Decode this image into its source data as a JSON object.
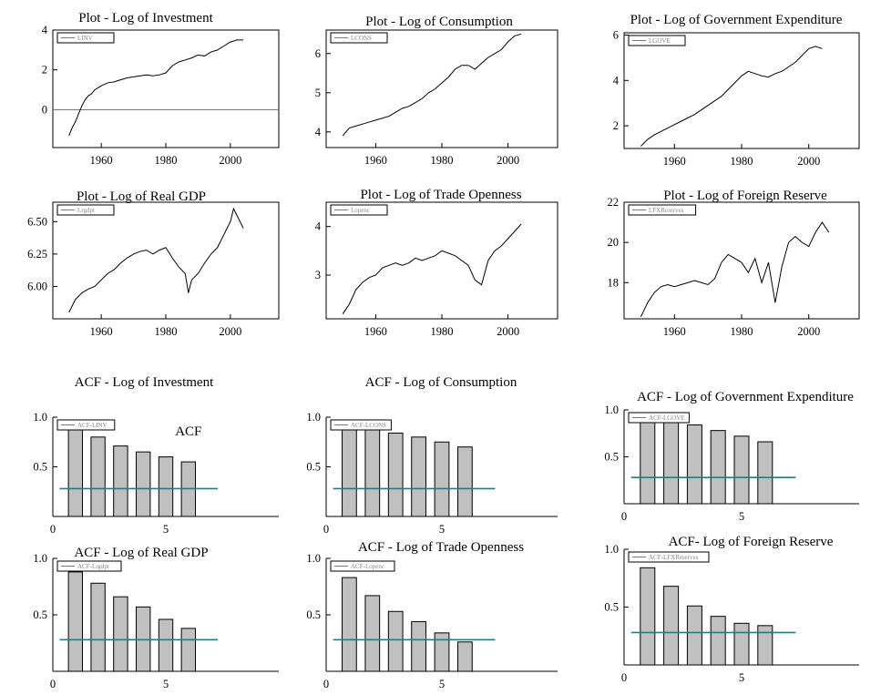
{
  "chart_data": [
    {
      "type": "line",
      "title": "Plot - Log of Investment",
      "legend": "LINV",
      "legend_position": "top-left",
      "xlim": [
        1945,
        2015
      ],
      "ylim": [
        -1.9,
        4.0
      ],
      "xticks": [
        1960,
        1980,
        2000
      ],
      "yticks": [
        0,
        2,
        4
      ],
      "ytick_labels": [
        "0",
        "2",
        "4"
      ],
      "reference_line": 0,
      "series": [
        {
          "x": [
            1950,
            1951,
            1952,
            1953,
            1954,
            1955,
            1956,
            1957,
            1958,
            1959,
            1960,
            1962,
            1964,
            1966,
            1968,
            1970,
            1972,
            1974,
            1976,
            1978,
            1980,
            1982,
            1984,
            1986,
            1988,
            1990,
            1992,
            1994,
            1996,
            1998,
            2000,
            2002,
            2004
          ],
          "y": [
            -1.3,
            -0.9,
            -0.6,
            -0.2,
            0.2,
            0.5,
            0.7,
            0.8,
            1.0,
            1.1,
            1.2,
            1.35,
            1.4,
            1.5,
            1.6,
            1.65,
            1.7,
            1.75,
            1.7,
            1.75,
            1.85,
            2.2,
            2.4,
            2.5,
            2.6,
            2.75,
            2.7,
            2.9,
            3.0,
            3.2,
            3.4,
            3.5,
            3.5
          ]
        }
      ]
    },
    {
      "type": "line",
      "title": "Plot - Log of Consumption",
      "legend": "LCONS",
      "legend_position": "top-left",
      "xlim": [
        1945,
        2015
      ],
      "ylim": [
        3.6,
        6.6
      ],
      "xticks": [
        1960,
        1980,
        2000
      ],
      "yticks": [
        4,
        5,
        6
      ],
      "ytick_labels": [
        "4",
        "5",
        "6"
      ],
      "series": [
        {
          "x": [
            1950,
            1952,
            1954,
            1956,
            1958,
            1960,
            1962,
            1964,
            1966,
            1968,
            1970,
            1972,
            1974,
            1976,
            1978,
            1980,
            1982,
            1984,
            1986,
            1988,
            1990,
            1992,
            1994,
            1996,
            1998,
            2000,
            2002,
            2004
          ],
          "y": [
            3.9,
            4.1,
            4.15,
            4.2,
            4.25,
            4.3,
            4.35,
            4.4,
            4.5,
            4.6,
            4.65,
            4.75,
            4.85,
            5.0,
            5.1,
            5.25,
            5.4,
            5.6,
            5.7,
            5.7,
            5.6,
            5.75,
            5.9,
            6.0,
            6.1,
            6.3,
            6.45,
            6.5
          ]
        }
      ]
    },
    {
      "type": "line",
      "title": "Plot - Log of Government Expenditure",
      "legend": "LGOVE",
      "legend_position": "top-left",
      "xlim": [
        1945,
        2015
      ],
      "ylim": [
        1.0,
        6.1
      ],
      "xticks": [
        1960,
        1980,
        2000
      ],
      "yticks": [
        2,
        4,
        6
      ],
      "ytick_labels": [
        "2",
        "4",
        "6"
      ],
      "series": [
        {
          "x": [
            1950,
            1952,
            1954,
            1956,
            1958,
            1960,
            1962,
            1964,
            1966,
            1968,
            1970,
            1972,
            1974,
            1976,
            1978,
            1980,
            1982,
            1984,
            1986,
            1988,
            1990,
            1992,
            1994,
            1996,
            1998,
            2000,
            2002,
            2004
          ],
          "y": [
            1.1,
            1.4,
            1.6,
            1.75,
            1.9,
            2.05,
            2.2,
            2.35,
            2.5,
            2.7,
            2.9,
            3.1,
            3.3,
            3.6,
            3.9,
            4.2,
            4.4,
            4.3,
            4.2,
            4.15,
            4.3,
            4.4,
            4.6,
            4.8,
            5.1,
            5.4,
            5.5,
            5.4
          ]
        }
      ]
    },
    {
      "type": "line",
      "title": "Plot - Log of Real GDP",
      "legend": "Lrgdpt",
      "legend_position": "top-left",
      "xlim": [
        1945,
        2015
      ],
      "ylim": [
        5.75,
        6.65
      ],
      "xticks": [
        1960,
        1980,
        2000
      ],
      "yticks": [
        6.0,
        6.25,
        6.5
      ],
      "ytick_labels": [
        "6.00",
        "6.25",
        "6.50"
      ],
      "series": [
        {
          "x": [
            1950,
            1952,
            1954,
            1956,
            1958,
            1960,
            1962,
            1964,
            1966,
            1968,
            1970,
            1972,
            1974,
            1976,
            1978,
            1980,
            1982,
            1984,
            1986,
            1987,
            1988,
            1990,
            1992,
            1994,
            1996,
            1998,
            2000,
            2001,
            2002,
            2004
          ],
          "y": [
            5.8,
            5.9,
            5.95,
            5.98,
            6.0,
            6.05,
            6.1,
            6.13,
            6.18,
            6.22,
            6.25,
            6.27,
            6.28,
            6.25,
            6.28,
            6.3,
            6.22,
            6.15,
            6.1,
            5.95,
            6.05,
            6.1,
            6.18,
            6.25,
            6.3,
            6.4,
            6.5,
            6.6,
            6.55,
            6.45
          ]
        }
      ]
    },
    {
      "type": "line",
      "title": "Plot - Log of Trade Openness",
      "legend": "Lopenc",
      "legend_position": "top-left",
      "xlim": [
        1945,
        2015
      ],
      "ylim": [
        2.1,
        4.5
      ],
      "xticks": [
        1960,
        1980,
        2000
      ],
      "yticks": [
        3,
        4
      ],
      "ytick_labels": [
        "3",
        "4"
      ],
      "series": [
        {
          "x": [
            1950,
            1952,
            1954,
            1956,
            1958,
            1960,
            1962,
            1964,
            1966,
            1968,
            1970,
            1972,
            1974,
            1976,
            1978,
            1980,
            1982,
            1984,
            1986,
            1988,
            1990,
            1992,
            1994,
            1996,
            1998,
            2000,
            2002,
            2004
          ],
          "y": [
            2.2,
            2.4,
            2.7,
            2.85,
            2.95,
            3.0,
            3.15,
            3.2,
            3.25,
            3.2,
            3.25,
            3.35,
            3.3,
            3.35,
            3.4,
            3.5,
            3.45,
            3.4,
            3.3,
            3.2,
            2.9,
            2.8,
            3.3,
            3.5,
            3.6,
            3.75,
            3.9,
            4.05
          ]
        }
      ]
    },
    {
      "type": "line",
      "title": "Plot - Log of Foreign Reserve",
      "legend": "LFXReserves",
      "legend_position": "top-left",
      "xlim": [
        1945,
        2015
      ],
      "ylim": [
        16.2,
        22.0
      ],
      "xticks": [
        1960,
        1980,
        2000
      ],
      "yticks": [
        18,
        20,
        22
      ],
      "ytick_labels": [
        "18",
        "20",
        "22"
      ],
      "series": [
        {
          "x": [
            1950,
            1952,
            1954,
            1956,
            1958,
            1960,
            1962,
            1964,
            1966,
            1968,
            1970,
            1972,
            1974,
            1976,
            1978,
            1980,
            1982,
            1984,
            1986,
            1988,
            1990,
            1992,
            1994,
            1996,
            1998,
            2000,
            2002,
            2004,
            2006
          ],
          "y": [
            16.3,
            17.0,
            17.5,
            17.8,
            17.9,
            17.8,
            17.9,
            18.0,
            18.1,
            18.0,
            17.9,
            18.2,
            19.0,
            19.4,
            19.2,
            19.0,
            18.5,
            19.2,
            18.0,
            19.0,
            17.0,
            18.8,
            20.0,
            20.3,
            20.0,
            19.8,
            20.5,
            21.0,
            20.5
          ]
        }
      ]
    },
    {
      "type": "bar",
      "title": "ACF - Log of Investment",
      "legend": "ACF-LINV",
      "legend_position": "top-left",
      "annotation": "ACF",
      "xlim": [
        0,
        10
      ],
      "ylim": [
        0,
        1.0
      ],
      "xticks": [
        0,
        5
      ],
      "yticks": [
        0.5,
        1.0
      ],
      "ytick_labels": [
        "0.5",
        "1.0"
      ],
      "x": [
        1,
        2,
        3,
        4,
        5,
        6
      ],
      "values": [
        0.91,
        0.8,
        0.71,
        0.65,
        0.6,
        0.55
      ],
      "reference_line": 0.28
    },
    {
      "type": "bar",
      "title": "ACF - Log of Consumption",
      "legend": "ACF-LCONS",
      "legend_position": "top-left",
      "xlim": [
        0,
        10
      ],
      "ylim": [
        0,
        1.0
      ],
      "xticks": [
        0,
        5
      ],
      "yticks": [
        0.5,
        1.0
      ],
      "ytick_labels": [
        "0.5",
        "1.0"
      ],
      "x": [
        1,
        2,
        3,
        4,
        5,
        6
      ],
      "values": [
        0.94,
        0.89,
        0.84,
        0.8,
        0.75,
        0.7
      ],
      "reference_line": 0.28
    },
    {
      "type": "bar",
      "title": "ACF - Log of Government Expenditure",
      "legend": "ACF-LGOVE",
      "legend_position": "top-left",
      "xlim": [
        0,
        10
      ],
      "ylim": [
        0,
        1.0
      ],
      "xticks": [
        0,
        5
      ],
      "yticks": [
        0.5,
        1.0
      ],
      "ytick_labels": [
        "0.5",
        "1.0"
      ],
      "x": [
        1,
        2,
        3,
        4,
        5,
        6
      ],
      "values": [
        0.93,
        0.9,
        0.84,
        0.78,
        0.72,
        0.66
      ],
      "reference_line": 0.28
    },
    {
      "type": "bar",
      "title": "ACF - Log of Real GDP",
      "legend": "ACF-Lrgdpt",
      "legend_position": "top-left",
      "xlim": [
        0,
        10
      ],
      "ylim": [
        0,
        1.0
      ],
      "xticks": [
        0,
        5
      ],
      "yticks": [
        0.5,
        1.0
      ],
      "ytick_labels": [
        "0.5",
        "1.0"
      ],
      "x": [
        1,
        2,
        3,
        4,
        5,
        6
      ],
      "values": [
        0.88,
        0.78,
        0.66,
        0.57,
        0.46,
        0.38
      ],
      "reference_line": 0.28
    },
    {
      "type": "bar",
      "title": "ACF - Log of Trade Openness",
      "legend": "ACF-Lopenc",
      "legend_position": "top-left",
      "xlim": [
        0,
        10
      ],
      "ylim": [
        0,
        1.0
      ],
      "xticks": [
        0,
        5
      ],
      "yticks": [
        0.5,
        1.0
      ],
      "ytick_labels": [
        "0.5",
        "1.0"
      ],
      "x": [
        1,
        2,
        3,
        4,
        5,
        6
      ],
      "values": [
        0.83,
        0.67,
        0.53,
        0.44,
        0.34,
        0.26
      ],
      "reference_line": 0.28
    },
    {
      "type": "bar",
      "title": "ACF- Log of Foreign Reserve",
      "legend": "ACF-LFXReserves",
      "legend_position": "top-left",
      "xlim": [
        0,
        10
      ],
      "ylim": [
        0,
        1.0
      ],
      "xticks": [
        0,
        5
      ],
      "yticks": [
        0.5,
        1.0
      ],
      "ytick_labels": [
        "0.5",
        "1.0"
      ],
      "x": [
        1,
        2,
        3,
        4,
        5,
        6
      ],
      "values": [
        0.84,
        0.68,
        0.51,
        0.42,
        0.36,
        0.34
      ],
      "reference_line": 0.28
    }
  ]
}
